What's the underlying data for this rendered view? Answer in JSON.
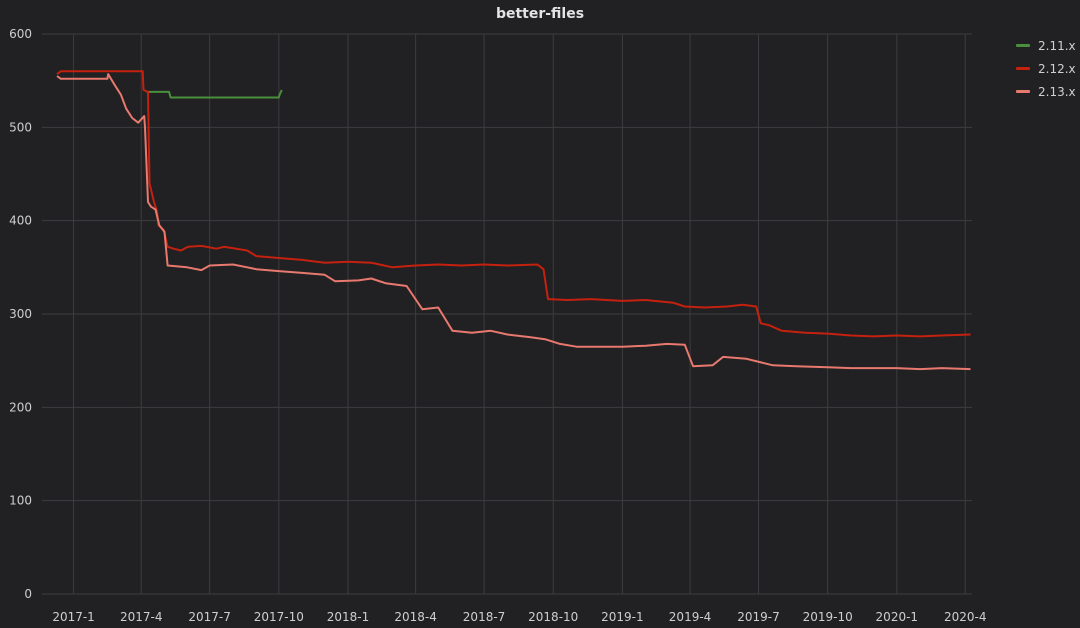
{
  "chart_data": {
    "type": "line",
    "title": "better-files",
    "xlabel": "",
    "ylabel": "",
    "ylim": [
      0,
      600
    ],
    "xlim": [
      "2016-11-20",
      "2020-04-10"
    ],
    "yticks": [
      0,
      100,
      200,
      300,
      400,
      500,
      600
    ],
    "xticks": [
      {
        "label": "2017-1",
        "date": "2017-01-01"
      },
      {
        "label": "2017-4",
        "date": "2017-04-01"
      },
      {
        "label": "2017-7",
        "date": "2017-07-01"
      },
      {
        "label": "2017-10",
        "date": "2017-10-01"
      },
      {
        "label": "2018-1",
        "date": "2018-01-01"
      },
      {
        "label": "2018-4",
        "date": "2018-04-01"
      },
      {
        "label": "2018-7",
        "date": "2018-07-01"
      },
      {
        "label": "2018-10",
        "date": "2018-10-01"
      },
      {
        "label": "2019-1",
        "date": "2019-01-01"
      },
      {
        "label": "2019-4",
        "date": "2019-04-01"
      },
      {
        "label": "2019-7",
        "date": "2019-07-01"
      },
      {
        "label": "2019-10",
        "date": "2019-10-01"
      },
      {
        "label": "2020-1",
        "date": "2020-01-01"
      },
      {
        "label": "2020-4",
        "date": "2020-04-01"
      }
    ],
    "grid": true,
    "legend_position": "top-right",
    "series": [
      {
        "name": "2.11.x",
        "color": "#4a8f3c",
        "points": [
          [
            "2017-04-08",
            538
          ],
          [
            "2017-05-08",
            538
          ],
          [
            "2017-05-10",
            532
          ],
          [
            "2017-10-01",
            532
          ],
          [
            "2017-10-02",
            535
          ],
          [
            "2017-10-05",
            540
          ]
        ]
      },
      {
        "name": "2.12.x",
        "color": "#c4210f",
        "points": [
          [
            "2016-12-10",
            557
          ],
          [
            "2016-12-15",
            560
          ],
          [
            "2017-04-03",
            560
          ],
          [
            "2017-04-04",
            540
          ],
          [
            "2017-04-10",
            538
          ],
          [
            "2017-04-12",
            440
          ],
          [
            "2017-04-18",
            420
          ],
          [
            "2017-04-22",
            410
          ],
          [
            "2017-04-24",
            395
          ],
          [
            "2017-05-01",
            390
          ],
          [
            "2017-05-06",
            372
          ],
          [
            "2017-05-14",
            370
          ],
          [
            "2017-05-24",
            368
          ],
          [
            "2017-06-02",
            372
          ],
          [
            "2017-06-20",
            373
          ],
          [
            "2017-07-10",
            370
          ],
          [
            "2017-07-20",
            372
          ],
          [
            "2017-08-20",
            368
          ],
          [
            "2017-09-01",
            362
          ],
          [
            "2017-10-01",
            360
          ],
          [
            "2017-11-01",
            358
          ],
          [
            "2017-12-01",
            355
          ],
          [
            "2018-01-01",
            356
          ],
          [
            "2018-02-01",
            355
          ],
          [
            "2018-03-01",
            350
          ],
          [
            "2018-04-01",
            352
          ],
          [
            "2018-05-01",
            353
          ],
          [
            "2018-06-01",
            352
          ],
          [
            "2018-07-01",
            353
          ],
          [
            "2018-08-01",
            352
          ],
          [
            "2018-09-10",
            353
          ],
          [
            "2018-09-18",
            348
          ],
          [
            "2018-09-24",
            316
          ],
          [
            "2018-10-20",
            315
          ],
          [
            "2018-11-20",
            316
          ],
          [
            "2019-01-01",
            314
          ],
          [
            "2019-02-01",
            315
          ],
          [
            "2019-03-10",
            312
          ],
          [
            "2019-03-25",
            308
          ],
          [
            "2019-04-20",
            307
          ],
          [
            "2019-05-20",
            308
          ],
          [
            "2019-06-10",
            310
          ],
          [
            "2019-06-28",
            308
          ],
          [
            "2019-07-04",
            290
          ],
          [
            "2019-07-15",
            288
          ],
          [
            "2019-08-01",
            282
          ],
          [
            "2019-09-01",
            280
          ],
          [
            "2019-10-01",
            279
          ],
          [
            "2019-11-01",
            277
          ],
          [
            "2019-12-01",
            276
          ],
          [
            "2020-01-01",
            277
          ],
          [
            "2020-02-01",
            276
          ],
          [
            "2020-03-01",
            277
          ],
          [
            "2020-04-08",
            278
          ]
        ]
      },
      {
        "name": "2.13.x",
        "color": "#e8796f",
        "points": [
          [
            "2016-12-10",
            555
          ],
          [
            "2016-12-15",
            552
          ],
          [
            "2017-02-15",
            552
          ],
          [
            "2017-02-16",
            557
          ],
          [
            "2017-02-25",
            545
          ],
          [
            "2017-03-05",
            535
          ],
          [
            "2017-03-12",
            520
          ],
          [
            "2017-03-20",
            510
          ],
          [
            "2017-03-28",
            505
          ],
          [
            "2017-04-05",
            512
          ],
          [
            "2017-04-06",
            500
          ],
          [
            "2017-04-10",
            420
          ],
          [
            "2017-04-14",
            415
          ],
          [
            "2017-04-20",
            412
          ],
          [
            "2017-04-25",
            395
          ],
          [
            "2017-05-02",
            388
          ],
          [
            "2017-05-06",
            352
          ],
          [
            "2017-06-01",
            350
          ],
          [
            "2017-06-20",
            347
          ],
          [
            "2017-07-01",
            352
          ],
          [
            "2017-08-01",
            353
          ],
          [
            "2017-08-20",
            350
          ],
          [
            "2017-09-01",
            348
          ],
          [
            "2017-10-01",
            346
          ],
          [
            "2017-11-01",
            344
          ],
          [
            "2017-12-01",
            342
          ],
          [
            "2017-12-15",
            335
          ],
          [
            "2018-01-15",
            336
          ],
          [
            "2018-02-01",
            338
          ],
          [
            "2018-02-20",
            333
          ],
          [
            "2018-03-20",
            330
          ],
          [
            "2018-04-10",
            305
          ],
          [
            "2018-05-01",
            307
          ],
          [
            "2018-05-20",
            282
          ],
          [
            "2018-06-15",
            280
          ],
          [
            "2018-07-10",
            282
          ],
          [
            "2018-08-01",
            278
          ],
          [
            "2018-09-01",
            275
          ],
          [
            "2018-09-20",
            273
          ],
          [
            "2018-10-10",
            268
          ],
          [
            "2018-11-01",
            265
          ],
          [
            "2019-01-01",
            265
          ],
          [
            "2019-02-01",
            266
          ],
          [
            "2019-03-01",
            268
          ],
          [
            "2019-03-25",
            267
          ],
          [
            "2019-04-05",
            244
          ],
          [
            "2019-05-01",
            245
          ],
          [
            "2019-05-15",
            254
          ],
          [
            "2019-06-15",
            252
          ],
          [
            "2019-07-05",
            248
          ],
          [
            "2019-07-20",
            245
          ],
          [
            "2019-08-20",
            244
          ],
          [
            "2019-10-01",
            243
          ],
          [
            "2019-11-01",
            242
          ],
          [
            "2020-01-01",
            242
          ],
          [
            "2020-02-01",
            241
          ],
          [
            "2020-03-01",
            242
          ],
          [
            "2020-04-08",
            241
          ]
        ]
      }
    ]
  }
}
